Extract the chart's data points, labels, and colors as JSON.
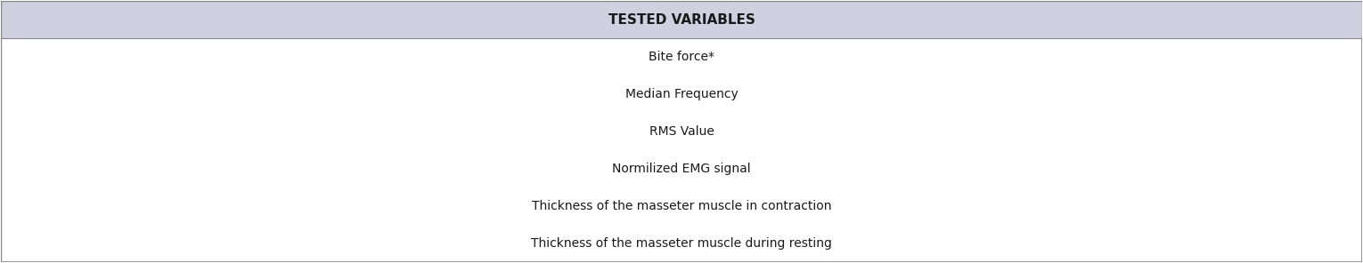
{
  "header_text": "TESTED VARIABLES",
  "header_bg_color": "#d0d0e0",
  "header_font_size": 11,
  "header_font_weight": "bold",
  "body_bg_color": "#ffffff",
  "rows": [
    "Bite force*",
    "Median Frequency",
    "RMS Value",
    "Normilized EMG signal",
    "Thickness of the masseter muscle in contraction",
    "Thickness of the masseter muscle during resting"
  ],
  "row_font_size": 10,
  "border_color": "#888888",
  "outer_border_color": "#aaaaaa",
  "figsize": [
    15.3,
    2.96
  ],
  "dpi": 100
}
